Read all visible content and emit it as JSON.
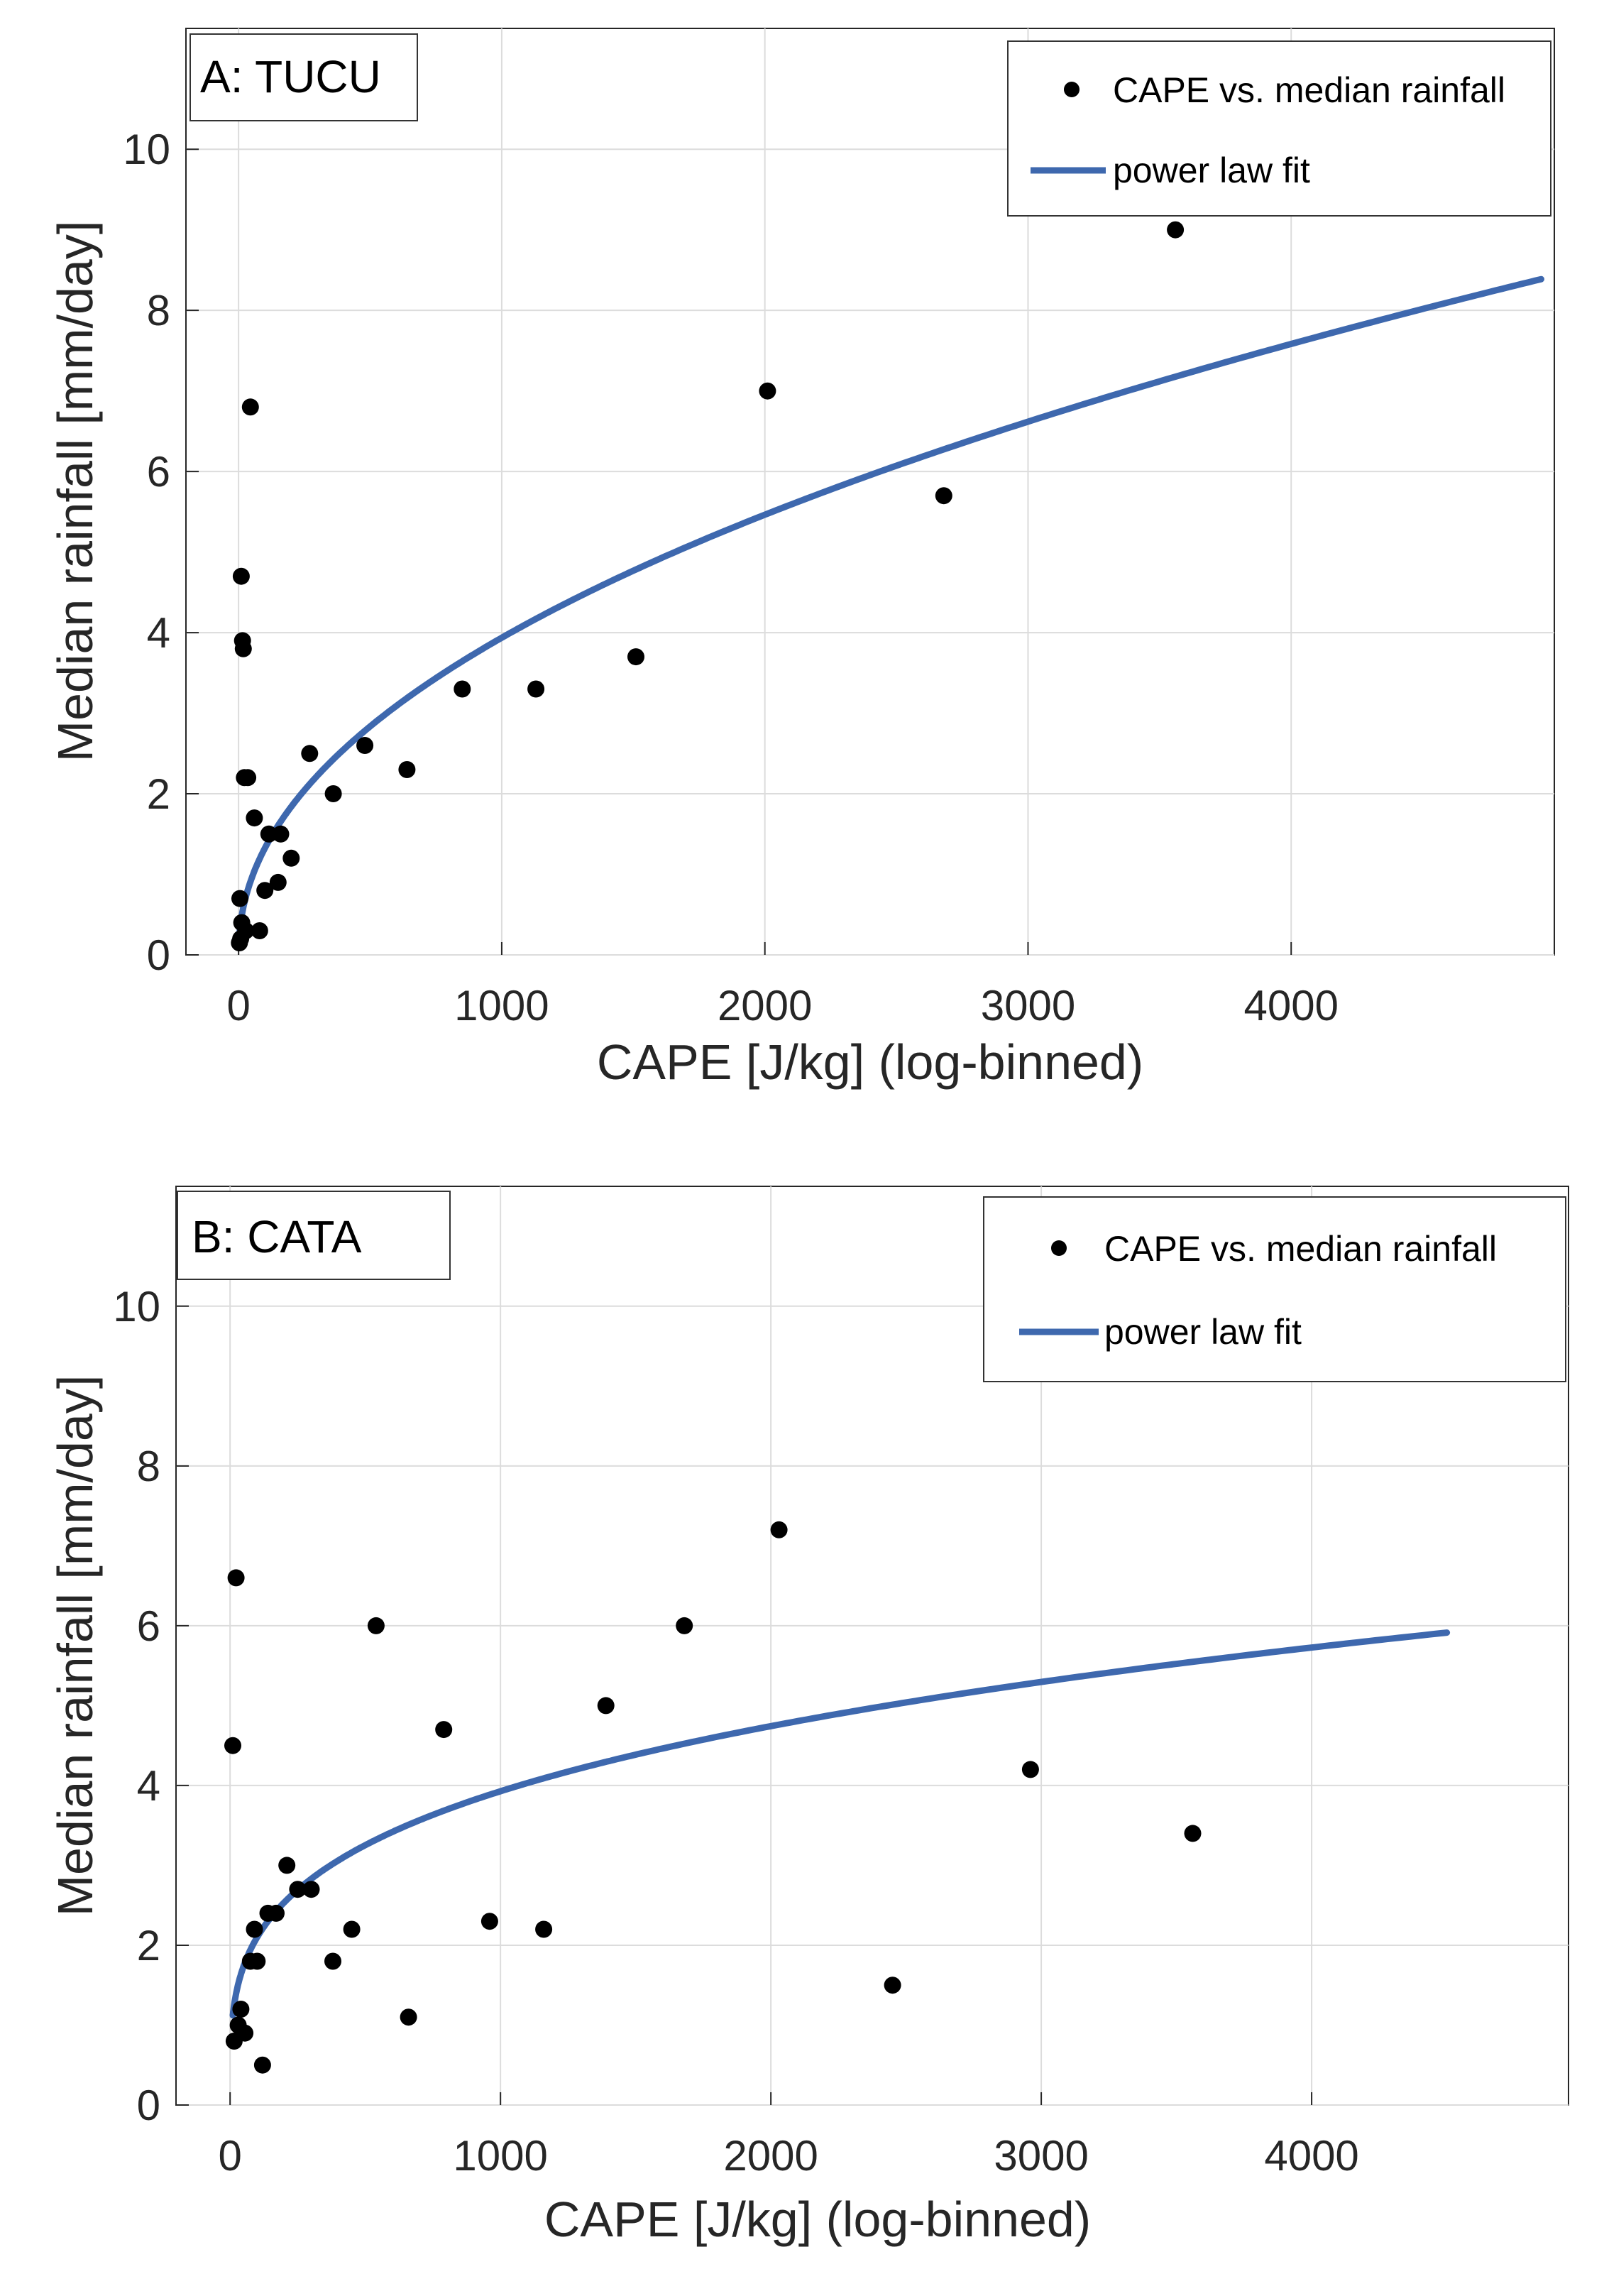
{
  "chart_data": [
    {
      "type": "scatter",
      "title": "A: TUCU",
      "xlabel": "CAPE [J/kg] (log-binned)",
      "ylabel": "Median rainfall [mm/day]",
      "xlim": [
        -200,
        5000
      ],
      "ylim": [
        0,
        11.5
      ],
      "xticks": [
        0,
        1000,
        2000,
        3000,
        4000
      ],
      "xtick_labels": [
        "0",
        "1000",
        "2000",
        "3000",
        "4000"
      ],
      "yticks": [
        0,
        2,
        4,
        6,
        8,
        10
      ],
      "ytick_labels": [
        "0",
        "2",
        "4",
        "6",
        "8",
        "10"
      ],
      "grid": true,
      "legend_position": "top-right",
      "series": [
        {
          "name": "CAPE vs. median rainfall",
          "kind": "scatter",
          "color": "#000000",
          "x": [
            3,
            5,
            8,
            10,
            12,
            15,
            18,
            22,
            27,
            35,
            45,
            60,
            80,
            100,
            115,
            150,
            160,
            200,
            270,
            360,
            480,
            640,
            850,
            1130,
            1510,
            2010,
            2680,
            3560
          ],
          "y": [
            0.15,
            0.7,
            0.2,
            4.7,
            0.4,
            3.9,
            3.8,
            2.2,
            0.3,
            2.2,
            6.8,
            1.7,
            0.3,
            0.8,
            1.5,
            0.9,
            1.5,
            1.2,
            2.5,
            2.0,
            2.6,
            2.3,
            3.3,
            3.3,
            3.7,
            7.0,
            5.7,
            9.0
          ]
        },
        {
          "name": "power law fit",
          "kind": "line",
          "color": "#3e68ae",
          "x_range": [
            0,
            4950
          ],
          "x_start": 1,
          "a": 0.15,
          "b": 0.473
        }
      ]
    },
    {
      "type": "scatter",
      "title": "B: CATA",
      "xlabel": "CAPE [J/kg] (log-binned)",
      "ylabel": "Median rainfall [mm/day]",
      "xlim": [
        -200,
        4950
      ],
      "ylim": [
        0,
        11.5
      ],
      "xticks": [
        0,
        1000,
        2000,
        3000,
        4000
      ],
      "xtick_labels": [
        "0",
        "1000",
        "2000",
        "3000",
        "4000"
      ],
      "yticks": [
        0,
        2,
        4,
        6,
        8,
        10
      ],
      "ytick_labels": [
        "0",
        "2",
        "4",
        "6",
        "8",
        "10"
      ],
      "grid": true,
      "legend_position": "top-right",
      "series": [
        {
          "name": "CAPE vs. median rainfall",
          "kind": "scatter",
          "color": "#000000",
          "x": [
            10,
            15,
            22,
            30,
            40,
            55,
            75,
            90,
            100,
            120,
            140,
            170,
            210,
            250,
            300,
            380,
            450,
            540,
            660,
            790,
            960,
            1160,
            1390,
            1680,
            2030,
            2450,
            2960,
            3560
          ],
          "y": [
            4.5,
            0.8,
            6.6,
            1.0,
            1.2,
            0.9,
            1.8,
            2.2,
            1.8,
            0.5,
            2.4,
            2.4,
            3.0,
            2.7,
            2.7,
            1.8,
            2.2,
            6.0,
            1.1,
            4.7,
            2.3,
            2.2,
            5.0,
            6.0,
            7.2,
            1.5,
            4.2,
            3.4
          ]
        },
        {
          "name": "power law fit",
          "kind": "line",
          "color": "#3e68ae",
          "x_range": [
            10,
            4500
          ],
          "x_start": 10,
          "a": 0.6,
          "b": 0.272
        }
      ]
    }
  ]
}
